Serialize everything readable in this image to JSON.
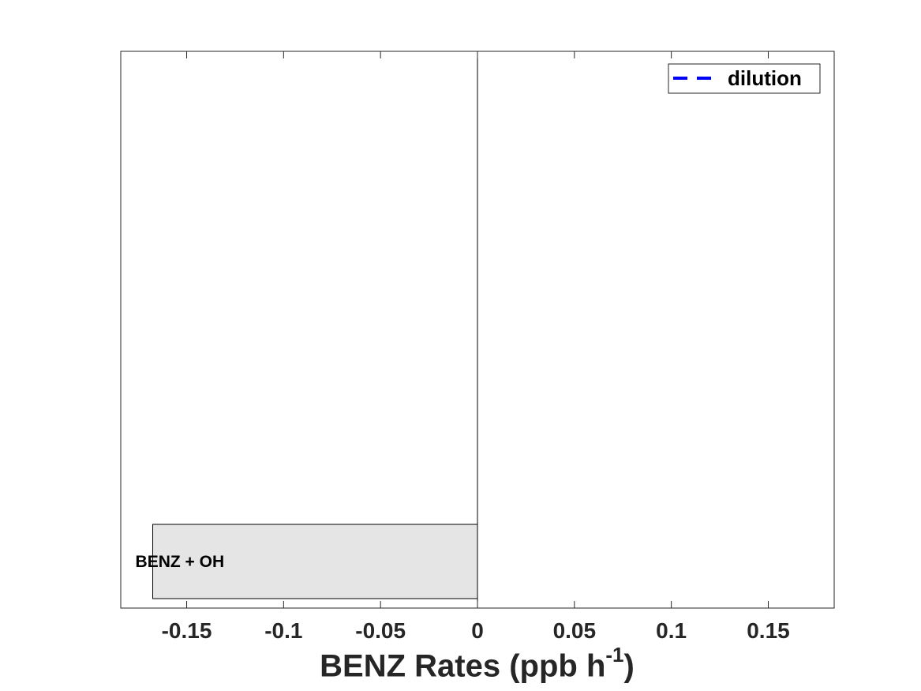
{
  "chart_data": {
    "type": "bar",
    "orientation": "horizontal",
    "categories": [
      "BENZ + OH"
    ],
    "values": [
      -0.1675
    ],
    "xlim": [
      -0.184,
      0.184
    ],
    "xticks": [
      -0.15,
      -0.1,
      -0.05,
      0,
      0.05,
      0.1,
      0.15
    ],
    "xtick_labels": [
      "-0.15",
      "-0.1",
      "-0.05",
      "0",
      "0.05",
      "0.1",
      "0.15"
    ],
    "xlabel": {
      "main": "BENZ Rates (ppb h",
      "superscript": "-1",
      "close": ")"
    },
    "legend": {
      "entries": [
        {
          "name": "dilution",
          "style": "dashed",
          "color": "#0000ff"
        }
      ],
      "position": "top-right"
    },
    "bar_color": "#e5e5e5",
    "grid": false
  }
}
